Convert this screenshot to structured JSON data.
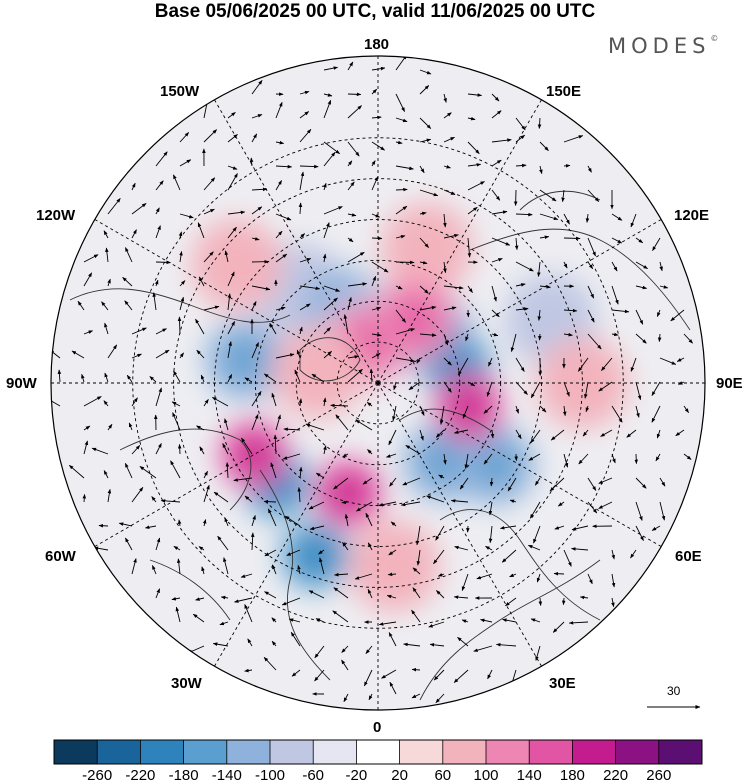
{
  "title": "Base 05/06/2025 00 UTC, valid 11/06/2025 00 UTC",
  "brand": "MODES",
  "brand_mark": "©",
  "longitude_labels": {
    "top": "180",
    "bottom": "0",
    "left": "90W",
    "right": "90E",
    "w150": "150W",
    "e150": "150E",
    "w120": "120W",
    "e120": "120E",
    "w60": "60W",
    "e60": "60E",
    "w30": "30W",
    "e30": "30E"
  },
  "vector_scale_label": "30",
  "colorbar": {
    "colors": [
      "#0b3a5c",
      "#19649a",
      "#2f83bd",
      "#5a9fcf",
      "#8fb2dc",
      "#bfc7e3",
      "#e5e6f1",
      "#ffffff",
      "#f7d9da",
      "#f3b3bd",
      "#ee86b3",
      "#e254a4",
      "#c41b8f",
      "#8c1284",
      "#5b0f73"
    ],
    "ticks": [
      "-260",
      "-220",
      "-180",
      "-140",
      "-100",
      "-60",
      "-20",
      "20",
      "60",
      "100",
      "140",
      "180",
      "220",
      "260"
    ]
  },
  "anomalies": [
    {
      "sign": "neg",
      "level": 2,
      "lon": -140,
      "lat": 60
    },
    {
      "sign": "neg",
      "level": 3,
      "lon": -155,
      "lat": 70
    },
    {
      "sign": "neg",
      "level": 3,
      "lon": -100,
      "lat": 57
    },
    {
      "sign": "neg",
      "level": 3,
      "lon": 130,
      "lat": 72
    },
    {
      "sign": "neg",
      "level": 4,
      "lon": 100,
      "lat": 70
    },
    {
      "sign": "neg",
      "level": 4,
      "lon": -45,
      "lat": 55
    },
    {
      "sign": "neg",
      "level": 4,
      "lon": -20,
      "lat": 45
    },
    {
      "sign": "neg",
      "level": 3,
      "lon": 40,
      "lat": 65
    },
    {
      "sign": "neg",
      "level": 3,
      "lon": 55,
      "lat": 55
    },
    {
      "sign": "neg",
      "level": 2,
      "lon": 110,
      "lat": 45
    },
    {
      "sign": "neg",
      "level": 2,
      "lon": -160,
      "lat": 78
    },
    {
      "sign": "pos",
      "level": 2,
      "lon": 160,
      "lat": 55
    },
    {
      "sign": "pos",
      "level": 2,
      "lon": -130,
      "lat": 45
    },
    {
      "sign": "pos",
      "level": 3,
      "lon": -165,
      "lat": 80
    },
    {
      "sign": "pos",
      "level": 3,
      "lon": 150,
      "lat": 72
    },
    {
      "sign": "pos",
      "level": 4,
      "lon": -60,
      "lat": 55
    },
    {
      "sign": "pos",
      "level": 4,
      "lon": -15,
      "lat": 62
    },
    {
      "sign": "pos",
      "level": 4,
      "lon": 75,
      "lat": 67
    },
    {
      "sign": "pos",
      "level": 2,
      "lon": 5,
      "lat": 45
    },
    {
      "sign": "pos",
      "level": 2,
      "lon": 90,
      "lat": 40
    },
    {
      "sign": "pos",
      "level": 2,
      "lon": -100,
      "lat": 75
    }
  ]
}
